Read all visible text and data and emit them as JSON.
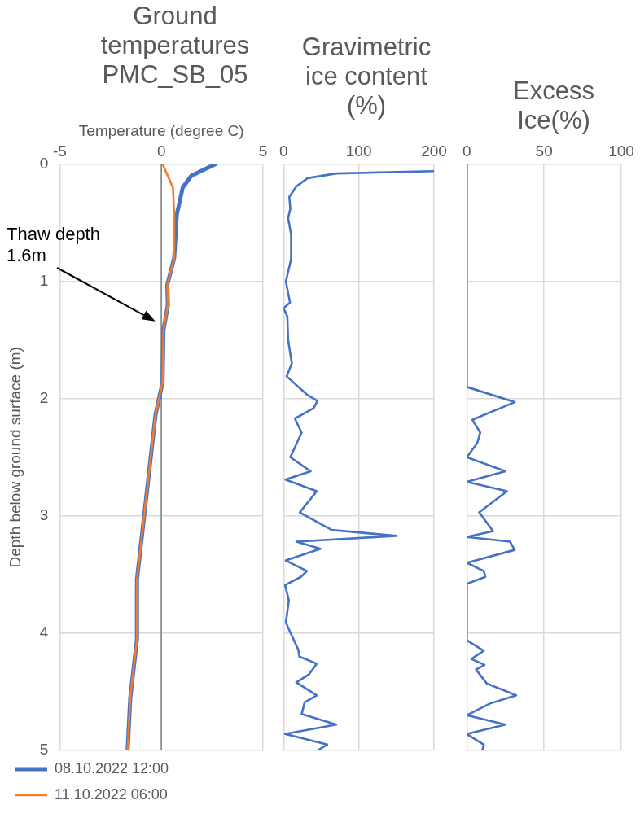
{
  "chart_data": [
    {
      "type": "line",
      "title": "Ground temperatures PMC_SB_05",
      "xlabel": "Temperature (degree C)",
      "ylabel": "Depth below ground surface (m)",
      "xlim": [
        -5,
        5
      ],
      "xticks": [
        -5,
        0,
        5
      ],
      "ylim": [
        5,
        0
      ],
      "yticks": [
        0,
        1,
        2,
        3,
        4,
        5
      ],
      "grid": true,
      "legend": "bottom",
      "ref_lines": [
        {
          "axis": "x",
          "value": 0,
          "color": "#808080"
        }
      ],
      "annotations": [
        "Thaw depth 1.6m"
      ],
      "series": [
        {
          "name": "08.10.2022 12:00",
          "color": "#4472c4",
          "x": [
            2.67,
            1.47,
            1.05,
            0.76,
            0.63,
            0.29,
            0.32,
            0.1,
            0.06,
            -0.29,
            -0.86,
            -1.2,
            -1.2,
            -1.53,
            -1.66
          ],
          "values": [
            0,
            0.1,
            0.2,
            0.43,
            0.8,
            1.03,
            1.2,
            1.42,
            1.86,
            2.14,
            3.02,
            3.54,
            4.05,
            4.55,
            5
          ]
        },
        {
          "name": "11.10.2022 06:00",
          "color": "#ed7d31",
          "x": [
            0.06,
            0.57,
            0.63,
            0.63,
            0.29,
            0.32,
            0.1,
            0.06,
            -0.29,
            -0.86,
            -1.2,
            -1.2,
            -1.53,
            -1.66
          ],
          "values": [
            0,
            0.2,
            0.43,
            0.8,
            1.03,
            1.2,
            1.42,
            1.86,
            2.14,
            3.02,
            3.54,
            4.05,
            4.55,
            5
          ]
        }
      ]
    },
    {
      "type": "line",
      "title": "Gravimetric ice content (%)",
      "xlim": [
        0,
        200
      ],
      "xticks": [
        0,
        100,
        200
      ],
      "ylim": [
        5,
        0
      ],
      "yticks": [
        0,
        1,
        2,
        3,
        4,
        5
      ],
      "grid": true,
      "tick_labels": "x",
      "series": [
        {
          "color": "#4472c4",
          "x": [
            200,
            70,
            32,
            17,
            7.5,
            9,
            6,
            10,
            10,
            3,
            8.5,
            0,
            5,
            6,
            11,
            4,
            32,
            45,
            40,
            15,
            24,
            9,
            36,
            2.5,
            44,
            21.5,
            64,
            150,
            17,
            49,
            3,
            31,
            23,
            2,
            7,
            3,
            19.5,
            21,
            44,
            34,
            17,
            44,
            28,
            24,
            70,
            2,
            58,
            45
          ],
          "values": [
            0.06,
            0.08,
            0.12,
            0.19,
            0.28,
            0.38,
            0.46,
            0.6,
            0.81,
            1,
            1.18,
            1.23,
            1.3,
            1.5,
            1.7,
            1.81,
            1.97,
            2.02,
            2.08,
            2.17,
            2.29,
            2.5,
            2.62,
            2.69,
            2.79,
            2.97,
            3.12,
            3.17,
            3.22,
            3.28,
            3.38,
            3.47,
            3.52,
            3.59,
            3.72,
            3.91,
            4.14,
            4.2,
            4.26,
            4.35,
            4.42,
            4.53,
            4.59,
            4.69,
            4.78,
            4.86,
            4.95,
            5
          ]
        }
      ]
    },
    {
      "type": "line",
      "title": "Excess Ice(%)",
      "xlim": [
        0,
        100
      ],
      "xticks": [
        0,
        50,
        100
      ],
      "ylim": [
        5,
        0
      ],
      "yticks": [
        0,
        1,
        2,
        3,
        4,
        5
      ],
      "grid": true,
      "tick_labels": "x",
      "series": [
        {
          "color": "#4472c4",
          "x": [
            0,
            0,
            31,
            3.6,
            8.7,
            6.7,
            0,
            25,
            0,
            26,
            8,
            17,
            0,
            28,
            31,
            0,
            11,
            12,
            0,
            0,
            11,
            3,
            11.5,
            6,
            13,
            32,
            15,
            0,
            25,
            0,
            11,
            10
          ],
          "values": [
            0,
            1.9,
            2.03,
            2.18,
            2.29,
            2.38,
            2.5,
            2.62,
            2.71,
            2.79,
            2.97,
            3.13,
            3.18,
            3.22,
            3.29,
            3.4,
            3.47,
            3.52,
            3.58,
            4.06,
            4.15,
            4.22,
            4.27,
            4.31,
            4.43,
            4.53,
            4.6,
            4.7,
            4.78,
            4.86,
            4.95,
            5
          ]
        }
      ]
    }
  ]
}
